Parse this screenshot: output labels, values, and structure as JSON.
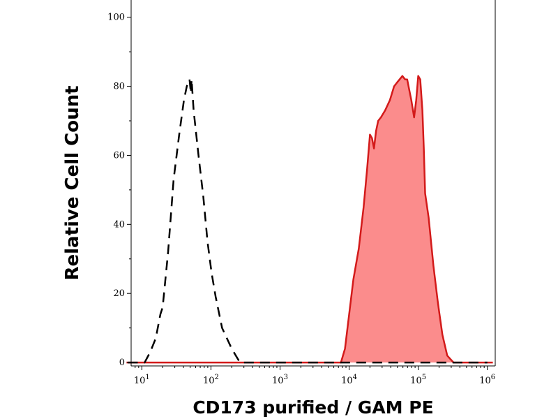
{
  "chart_data": {
    "type": "area",
    "xlabel": "CD173 purified / GAM PE",
    "ylabel": "Relative Cell Count",
    "x_scale": "log",
    "xlim": [
      7,
      1300000
    ],
    "ylim": [
      -1,
      105
    ],
    "x_ticks": [
      {
        "base": "10",
        "exp": "1",
        "value": 10
      },
      {
        "base": "10",
        "exp": "2",
        "value": 100
      },
      {
        "base": "10",
        "exp": "3",
        "value": 1000
      },
      {
        "base": "10",
        "exp": "4",
        "value": 10000
      },
      {
        "base": "10",
        "exp": "5",
        "value": 100000
      },
      {
        "base": "10",
        "exp": "6",
        "value": 1000000
      }
    ],
    "y_ticks": [
      "0",
      "20",
      "40",
      "60",
      "80",
      "100"
    ],
    "grid": false,
    "series": [
      {
        "style": "dashed",
        "color": "#000000",
        "filled": false,
        "x": [
          6.3,
          11,
          13.2,
          15.9,
          18.6,
          20,
          24,
          28.8,
          34.7,
          40.7,
          44.7,
          49,
          51.3,
          52.5,
          56.2,
          66.1,
          77.6,
          89.1,
          102,
          117,
          145,
          200,
          263,
          331,
          5000,
          1000000
        ],
        "y": [
          0,
          0,
          3,
          7,
          14,
          16,
          32,
          53,
          66,
          76,
          80,
          82,
          78,
          82,
          73,
          60,
          48,
          35,
          26,
          19,
          10,
          4,
          0,
          0,
          0,
          0
        ]
      },
      {
        "style": "solid",
        "color": "#d31a1a",
        "fill": "#fb8c8c",
        "filled": true,
        "x": [
          6,
          1000,
          7600,
          8700,
          10000,
          11500,
          13800,
          16200,
          18200,
          20000,
          21400,
          22900,
          24500,
          26300,
          28800,
          33100,
          38900,
          44700,
          49000,
          53700,
          58900,
          64600,
          69200,
          74100,
          79400,
          87100,
          93300,
          100000,
          107000,
          114800,
          120200,
          125900,
          141300,
          166000,
          190500,
          199500,
          223900,
          263000,
          323600,
          400000,
          446700,
          524800,
          1200000
        ],
        "y": [
          0,
          0,
          0,
          4,
          14,
          24,
          33,
          45,
          56,
          66,
          65,
          62,
          67,
          70,
          71,
          73,
          76,
          80,
          81,
          82,
          83,
          82,
          82,
          79,
          76,
          71,
          76,
          83,
          82,
          73,
          62,
          49,
          42,
          28,
          18,
          15,
          8,
          2,
          0,
          0,
          0,
          0,
          0
        ]
      }
    ]
  }
}
